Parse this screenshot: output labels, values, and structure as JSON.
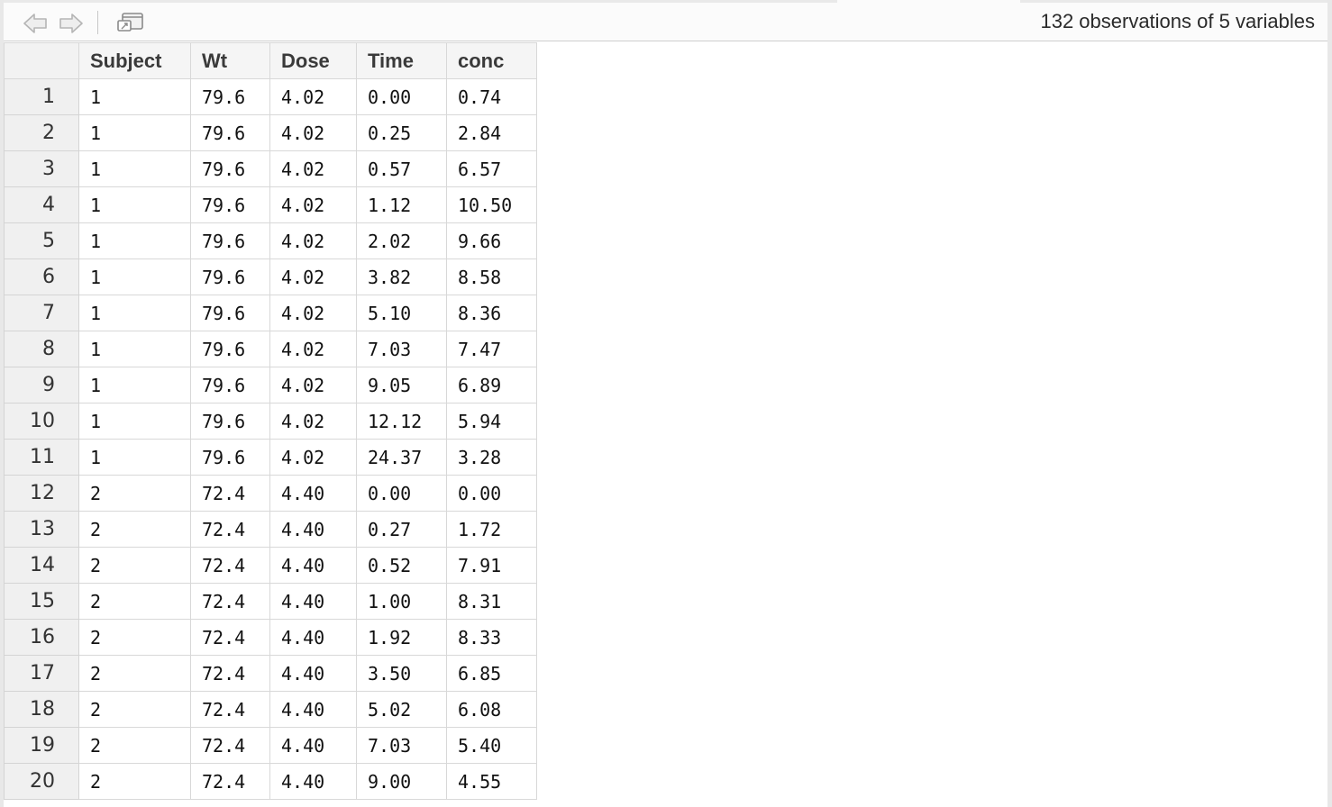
{
  "toolbar": {
    "back_icon": "arrow-left-icon",
    "forward_icon": "arrow-right-icon",
    "popout_icon": "popout-window-icon",
    "status": "132 observations of 5 variables"
  },
  "table": {
    "columns": [
      "Subject",
      "Wt",
      "Dose",
      "Time",
      "conc"
    ],
    "rows": [
      {
        "n": "1",
        "cells": [
          "1",
          "79.6",
          "4.02",
          "0.00",
          "0.74"
        ]
      },
      {
        "n": "2",
        "cells": [
          "1",
          "79.6",
          "4.02",
          "0.25",
          "2.84"
        ]
      },
      {
        "n": "3",
        "cells": [
          "1",
          "79.6",
          "4.02",
          "0.57",
          "6.57"
        ]
      },
      {
        "n": "4",
        "cells": [
          "1",
          "79.6",
          "4.02",
          "1.12",
          "10.50"
        ]
      },
      {
        "n": "5",
        "cells": [
          "1",
          "79.6",
          "4.02",
          "2.02",
          "9.66"
        ]
      },
      {
        "n": "6",
        "cells": [
          "1",
          "79.6",
          "4.02",
          "3.82",
          "8.58"
        ]
      },
      {
        "n": "7",
        "cells": [
          "1",
          "79.6",
          "4.02",
          "5.10",
          "8.36"
        ]
      },
      {
        "n": "8",
        "cells": [
          "1",
          "79.6",
          "4.02",
          "7.03",
          "7.47"
        ]
      },
      {
        "n": "9",
        "cells": [
          "1",
          "79.6",
          "4.02",
          "9.05",
          "6.89"
        ]
      },
      {
        "n": "10",
        "cells": [
          "1",
          "79.6",
          "4.02",
          "12.12",
          "5.94"
        ]
      },
      {
        "n": "11",
        "cells": [
          "1",
          "79.6",
          "4.02",
          "24.37",
          "3.28"
        ]
      },
      {
        "n": "12",
        "cells": [
          "2",
          "72.4",
          "4.40",
          "0.00",
          "0.00"
        ]
      },
      {
        "n": "13",
        "cells": [
          "2",
          "72.4",
          "4.40",
          "0.27",
          "1.72"
        ]
      },
      {
        "n": "14",
        "cells": [
          "2",
          "72.4",
          "4.40",
          "0.52",
          "7.91"
        ]
      },
      {
        "n": "15",
        "cells": [
          "2",
          "72.4",
          "4.40",
          "1.00",
          "8.31"
        ]
      },
      {
        "n": "16",
        "cells": [
          "2",
          "72.4",
          "4.40",
          "1.92",
          "8.33"
        ]
      },
      {
        "n": "17",
        "cells": [
          "2",
          "72.4",
          "4.40",
          "3.50",
          "6.85"
        ]
      },
      {
        "n": "18",
        "cells": [
          "2",
          "72.4",
          "4.40",
          "5.02",
          "6.08"
        ]
      },
      {
        "n": "19",
        "cells": [
          "2",
          "72.4",
          "4.40",
          "7.03",
          "5.40"
        ]
      },
      {
        "n": "20",
        "cells": [
          "2",
          "72.4",
          "4.40",
          "9.00",
          "4.55"
        ]
      }
    ]
  }
}
